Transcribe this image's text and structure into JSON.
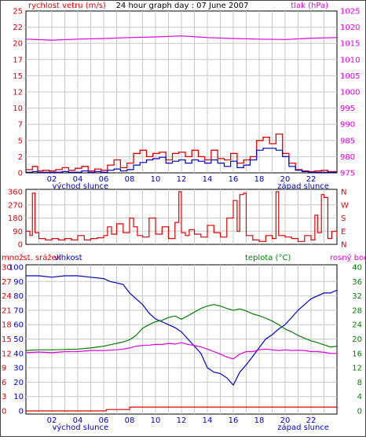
{
  "chart_data": [
    {
      "type": "line",
      "panel": "wind-pressure",
      "title": "24 hour graph day : 07 June 2007",
      "ylabel_left": "rychlost vetru (m/s)",
      "ylabel_right": "tlak (hPa)",
      "ylim_left": [
        0,
        25
      ],
      "yticks_left": [
        "0",
        "2",
        "5",
        "7",
        "10",
        "12",
        "15",
        "17",
        "20",
        "22",
        "25"
      ],
      "ylim_right": [
        975,
        1025
      ],
      "yticks_right": [
        "975",
        "980",
        "985",
        "990",
        "995",
        "1000",
        "1005",
        "1010",
        "1015",
        "1020",
        "1025"
      ],
      "xticks": [
        "02",
        "04",
        "06",
        "08",
        "10",
        "12",
        "14",
        "16",
        "18",
        "20",
        "22"
      ],
      "sunrise_label": "východ slunce",
      "sunset_label": "západ slunce",
      "sunrise_hour": 4.2,
      "sunset_hour": 21.4,
      "colors": {
        "gust": "#e00000",
        "wind": "#0000c0",
        "pressure": "#e000e0",
        "axis_left": "#e00000",
        "axis_right": "#e000e0",
        "title": "#000000"
      },
      "series": [
        {
          "key": "gust",
          "axis": "left",
          "x": [
            0,
            0.5,
            0.9,
            1.3,
            1.8,
            2.3,
            2.8,
            3.3,
            3.8,
            4.3,
            4.8,
            5.3,
            5.8,
            6.3,
            6.8,
            7.3,
            7.8,
            8.3,
            8.8,
            9.3,
            9.8,
            10.3,
            10.8,
            11.3,
            11.8,
            12.3,
            12.8,
            13.3,
            13.8,
            14.3,
            14.8,
            15.3,
            15.8,
            16.3,
            16.8,
            17.3,
            17.8,
            18.3,
            18.8,
            19.3,
            19.8,
            20.3,
            20.8,
            21.3,
            21.8,
            22.3,
            22.8,
            23.3,
            24
          ],
          "values": [
            0.5,
            1.0,
            0.3,
            0.4,
            0.3,
            0.5,
            0.8,
            0.4,
            0.7,
            1.0,
            0.3,
            0.6,
            0.4,
            1.2,
            2.0,
            0.8,
            1.5,
            3.0,
            3.5,
            2.5,
            3.0,
            3.2,
            2.0,
            3.0,
            3.2,
            2.5,
            3.5,
            2.5,
            2.0,
            3.5,
            2.2,
            2.0,
            3.0,
            1.5,
            2.0,
            2.5,
            5.0,
            5.5,
            4.5,
            6.0,
            3.0,
            1.5,
            0.5,
            0.3,
            0.2,
            0.3,
            0.4,
            0.2,
            0.3
          ]
        },
        {
          "key": "wind",
          "axis": "left",
          "x": [
            0,
            0.5,
            0.9,
            1.3,
            1.8,
            2.3,
            2.8,
            3.3,
            3.8,
            4.3,
            4.8,
            5.3,
            5.8,
            6.3,
            6.8,
            7.3,
            7.8,
            8.3,
            8.8,
            9.3,
            9.8,
            10.3,
            10.8,
            11.3,
            11.8,
            12.3,
            12.8,
            13.3,
            13.8,
            14.3,
            14.8,
            15.3,
            15.8,
            16.3,
            16.8,
            17.3,
            17.8,
            18.3,
            18.8,
            19.3,
            19.8,
            20.3,
            20.8,
            21.3,
            21.8,
            22.3,
            22.8,
            23.3,
            24
          ],
          "values": [
            0.1,
            0.2,
            0.1,
            0.1,
            0.1,
            0.1,
            0.2,
            0.1,
            0.1,
            0.3,
            0.1,
            0.2,
            0.1,
            0.4,
            0.6,
            0.3,
            0.5,
            1.2,
            1.6,
            2.0,
            2.2,
            2.4,
            1.5,
            1.8,
            2.0,
            1.5,
            2.0,
            1.8,
            1.5,
            2.0,
            1.5,
            1.0,
            1.8,
            0.8,
            1.2,
            2.0,
            3.5,
            3.8,
            3.8,
            3.5,
            2.5,
            1.0,
            0.4,
            0.2,
            0.1,
            0.1,
            0.1,
            0.1,
            0.1
          ]
        },
        {
          "key": "pressure",
          "axis": "right",
          "x": [
            0,
            2,
            4,
            6,
            8,
            10,
            12,
            14,
            16,
            18,
            20,
            22,
            24
          ],
          "values": [
            1016.3,
            1016.0,
            1016.3,
            1016.5,
            1016.8,
            1017.0,
            1017.3,
            1016.8,
            1016.5,
            1016.3,
            1016.2,
            1016.6,
            1016.8
          ]
        }
      ]
    },
    {
      "type": "line",
      "panel": "wind-direction",
      "yticks_left": [
        "0",
        "90",
        "180",
        "270",
        "360"
      ],
      "yticks_right": [
        "N",
        "E",
        "S",
        "W",
        "N"
      ],
      "ylim": [
        0,
        360
      ],
      "xticks": [
        "02",
        "04",
        "06",
        "08",
        "10",
        "12",
        "14",
        "16",
        "18",
        "20",
        "22"
      ],
      "colors": {
        "direction": "#e00000",
        "axis_left": "#e00000",
        "axis_right": "#e00000"
      },
      "series": [
        {
          "key": "direction",
          "x": [
            0,
            0.3,
            0.5,
            0.7,
            1.0,
            1.5,
            2.0,
            2.5,
            3.0,
            3.5,
            4.0,
            4.5,
            5.0,
            5.5,
            6.0,
            6.3,
            6.6,
            7.0,
            7.5,
            8.0,
            8.3,
            8.6,
            9.0,
            9.5,
            10.0,
            10.5,
            11.0,
            11.5,
            11.8,
            12.0,
            12.3,
            12.6,
            13.0,
            13.5,
            14.0,
            14.5,
            15.0,
            15.5,
            16.0,
            16.3,
            16.5,
            16.8,
            17.0,
            17.5,
            18.0,
            18.5,
            19.0,
            19.3,
            19.5,
            20.0,
            20.5,
            21.0,
            21.5,
            22.0,
            22.3,
            22.5,
            22.8,
            23.0,
            23.3,
            23.6,
            24
          ],
          "values": [
            90,
            60,
            350,
            80,
            40,
            30,
            40,
            30,
            40,
            30,
            60,
            30,
            40,
            45,
            60,
            120,
            70,
            140,
            80,
            180,
            120,
            60,
            50,
            180,
            70,
            120,
            40,
            150,
            360,
            80,
            60,
            100,
            70,
            50,
            130,
            80,
            50,
            180,
            300,
            90,
            340,
            350,
            60,
            30,
            20,
            60,
            40,
            360,
            60,
            50,
            40,
            20,
            60,
            30,
            200,
            80,
            340,
            320,
            40,
            90,
            50
          ]
        }
      ]
    },
    {
      "type": "line",
      "panel": "temperature-humidity",
      "ylabel_rain": "množst. srážek",
      "ylabel_humidity": "vlhkost",
      "ylabel_temp": "teplota (°C)",
      "ylabel_dew": "rosný bod",
      "yticks_rain": [
        "0",
        "3",
        "6",
        "9",
        "12",
        "15",
        "18",
        "21",
        "24",
        "27",
        "30"
      ],
      "yticks_humidity": [
        "0",
        "10",
        "20",
        "30",
        "40",
        "50",
        "60",
        "70",
        "80",
        "90",
        "100"
      ],
      "yticks_temp": [
        "0",
        "4",
        "8",
        "12",
        "16",
        "20",
        "24",
        "28",
        "32",
        "36",
        "40"
      ],
      "ylim_humidity": [
        0,
        100
      ],
      "ylim_temp": [
        0,
        40
      ],
      "ylim_rain": [
        0,
        30
      ],
      "xticks": [
        "02",
        "04",
        "06",
        "08",
        "10",
        "12",
        "14",
        "16",
        "18",
        "20",
        "22"
      ],
      "sunrise_label": "východ slunce",
      "sunset_label": "západ slunce",
      "colors": {
        "humidity": "#0000c0",
        "temperature": "#008000",
        "dew_point": "#e000e0",
        "rain": "#e00000",
        "axis_rain": "#e00000",
        "axis_humidity": "#0000c0",
        "axis_temp": "#008000",
        "axis_dew": "#e000e0"
      },
      "series": [
        {
          "key": "humidity",
          "axis": "humidity",
          "x": [
            0,
            1,
            2,
            3,
            4,
            5,
            6,
            6.5,
            7,
            7.5,
            8,
            8.5,
            9,
            9.5,
            10,
            10.5,
            11,
            11.5,
            12,
            12.5,
            13,
            13.5,
            14,
            14.5,
            15,
            15.5,
            16,
            16.5,
            17,
            17.5,
            18,
            18.5,
            19,
            19.5,
            20,
            20.5,
            21,
            21.5,
            22,
            22.5,
            23,
            23.5,
            24
          ],
          "values": [
            94,
            94,
            93,
            94,
            94,
            93,
            92,
            90,
            89,
            88,
            82,
            78,
            74,
            68,
            64,
            62,
            60,
            58,
            55,
            50,
            45,
            40,
            30,
            27,
            26,
            23,
            18,
            27,
            32,
            38,
            44,
            50,
            53,
            57,
            60,
            65,
            70,
            74,
            78,
            80,
            82,
            82,
            84
          ]
        },
        {
          "key": "temperature",
          "axis": "temp",
          "x": [
            0,
            1,
            2,
            3,
            4,
            5,
            6,
            6.5,
            7,
            7.5,
            8,
            8.5,
            9,
            9.5,
            10,
            10.5,
            11,
            11.5,
            12,
            12.5,
            13,
            13.5,
            14,
            14.5,
            15,
            15.5,
            16,
            16.5,
            17,
            17.5,
            18,
            18.5,
            19,
            19.5,
            20,
            20.5,
            21,
            21.5,
            22,
            22.5,
            23,
            23.5,
            24
          ],
          "values": [
            16.8,
            17.0,
            17.0,
            17.1,
            17.2,
            17.5,
            18.0,
            18.4,
            18.8,
            19.2,
            19.8,
            21.0,
            23.0,
            24.0,
            24.8,
            25.2,
            26.0,
            26.4,
            25.5,
            26.5,
            27.5,
            28.5,
            29.2,
            29.6,
            29.2,
            28.5,
            28.0,
            28.4,
            27.8,
            27.0,
            26.5,
            25.8,
            25.0,
            24.0,
            22.8,
            22.0,
            21.0,
            20.2,
            19.5,
            19.0,
            18.4,
            17.8,
            18.0
          ]
        },
        {
          "key": "dew_point",
          "axis": "temp",
          "x": [
            0,
            1,
            2,
            3,
            4,
            5,
            6,
            6.5,
            7,
            7.5,
            8,
            8.5,
            9,
            9.5,
            10,
            10.5,
            11,
            11.5,
            12,
            12.5,
            13,
            13.5,
            14,
            14.5,
            15,
            15.5,
            16,
            16.5,
            17,
            17.5,
            18,
            18.5,
            19,
            19.5,
            20,
            20.5,
            21,
            21.5,
            22,
            22.5,
            23,
            23.5,
            24
          ],
          "values": [
            16.2,
            16.4,
            16.2,
            16.5,
            16.5,
            16.8,
            16.8,
            16.9,
            17.0,
            17.2,
            17.5,
            18.0,
            18.2,
            18.3,
            18.5,
            18.5,
            18.8,
            18.6,
            19.0,
            18.5,
            18.2,
            17.8,
            17.2,
            16.5,
            15.8,
            15.0,
            14.5,
            15.8,
            16.5,
            16.5,
            17.0,
            17.2,
            17.0,
            16.8,
            17.0,
            16.8,
            16.9,
            16.8,
            16.5,
            16.5,
            16.3,
            16.0,
            16.0
          ]
        },
        {
          "key": "rain",
          "axis": "rain",
          "x": [
            0,
            6.2,
            6.2,
            8.0,
            8.0,
            24
          ],
          "values": [
            0,
            0,
            0.3,
            0.3,
            0.8,
            0.8
          ]
        }
      ]
    }
  ]
}
